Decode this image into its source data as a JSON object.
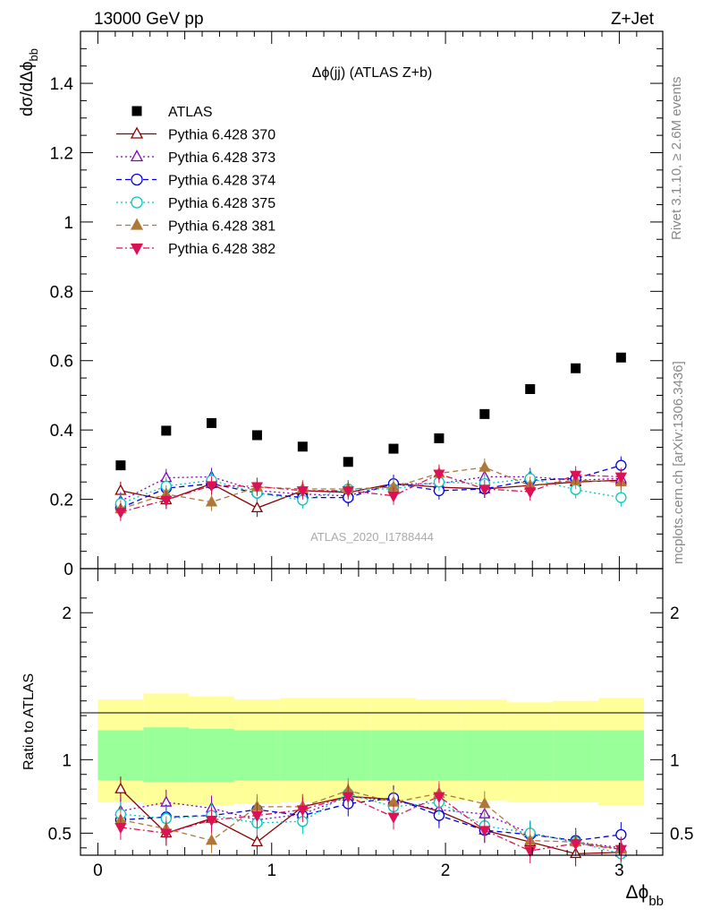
{
  "header": {
    "energy_label": "13000 GeV pp",
    "process_label": "Z+Jet"
  },
  "side_labels": {
    "rivet": "Rivet 3.1.10, ≥ 2.6M events",
    "mcplots": "mcplots.cern.ch [arXiv:1306.3436]"
  },
  "chart_data": [
    {
      "type": "scatter",
      "title": "Δϕ(jj) (ATLAS Z+b)",
      "watermark": "ATLAS_2020_I1788444",
      "ylabel": "dσ/dΔϕbb",
      "xlim": [
        -0.1,
        3.25
      ],
      "ylim": [
        0,
        1.55
      ],
      "yticks": [
        0,
        0.2,
        0.4,
        0.6,
        0.8,
        1,
        1.2,
        1.4
      ],
      "ytick_labels": [
        "0",
        "0.2",
        "0.4",
        "0.6",
        "0.8",
        "1",
        "1.2",
        "1.4"
      ],
      "legend_position": "top-left",
      "x": [
        0.131,
        0.393,
        0.654,
        0.916,
        1.178,
        1.44,
        1.701,
        1.963,
        2.225,
        2.487,
        2.749,
        3.01
      ],
      "data": {
        "name": "ATLAS",
        "color": "#000000",
        "values": [
          0.298,
          0.398,
          0.42,
          0.385,
          0.352,
          0.308,
          0.346,
          0.376,
          0.446,
          0.518,
          0.578,
          0.609
        ]
      },
      "series": [
        {
          "name": "Pythia 6.428 370",
          "color": "#8b0000",
          "marker": "triangle-open",
          "dash": "solid",
          "values": [
            0.225,
            0.198,
            0.245,
            0.175,
            0.225,
            0.22,
            0.245,
            0.235,
            0.23,
            0.24,
            0.25,
            0.255
          ]
        },
        {
          "name": "Pythia 6.428 373",
          "color": "#8000c0",
          "marker": "triangle-open",
          "dash": "dotted",
          "values": [
            0.195,
            0.262,
            0.265,
            0.225,
            0.215,
            0.21,
            0.245,
            0.245,
            0.265,
            0.265,
            0.255,
            0.26
          ]
        },
        {
          "name": "Pythia 6.428 374",
          "color": "#0000dd",
          "marker": "circle-open",
          "dash": "dashed",
          "values": [
            0.175,
            0.232,
            0.245,
            0.218,
            0.205,
            0.205,
            0.245,
            0.225,
            0.23,
            0.255,
            0.26,
            0.298
          ]
        },
        {
          "name": "Pythia 6.428 375",
          "color": "#00ccbb",
          "marker": "circle-open",
          "dash": "dotted",
          "values": [
            0.188,
            0.238,
            0.255,
            0.218,
            0.198,
            0.23,
            0.23,
            0.25,
            0.245,
            0.26,
            0.228,
            0.205
          ]
        },
        {
          "name": "Pythia 6.428 381",
          "color": "#b07838",
          "marker": "triangle-filled",
          "dash": "dashed",
          "values": [
            0.172,
            0.215,
            0.192,
            0.235,
            0.23,
            0.23,
            0.235,
            0.275,
            0.292,
            0.24,
            0.255,
            0.25
          ]
        },
        {
          "name": "Pythia 6.428 382",
          "color": "#dd1155",
          "marker": "triangledown-filled",
          "dash": "dashdot",
          "values": [
            0.163,
            0.198,
            0.24,
            0.237,
            0.225,
            0.225,
            0.21,
            0.273,
            0.23,
            0.222,
            0.27,
            0.265
          ]
        }
      ]
    },
    {
      "type": "scatter",
      "ylabel": "Ratio to ATLAS",
      "xlabel": "Δϕbb",
      "xlim": [
        -0.1,
        3.25
      ],
      "ylim": [
        0.35,
        2.3
      ],
      "yticks": [
        0.5,
        1,
        2
      ],
      "ytick_labels": [
        "0.5",
        "1",
        "2"
      ],
      "xticks": [
        0,
        1,
        2,
        3
      ],
      "xtick_labels": [
        "0",
        "1",
        "2",
        "3"
      ],
      "reference_line": 1,
      "bin_edges": [
        0,
        0.262,
        0.524,
        0.785,
        1.047,
        1.309,
        1.571,
        1.833,
        2.094,
        2.356,
        2.618,
        2.88,
        3.142
      ],
      "band_inner": {
        "color": "#99ff99",
        "low": [
          0.86,
          0.85,
          0.85,
          0.86,
          0.86,
          0.86,
          0.86,
          0.86,
          0.86,
          0.86,
          0.86,
          0.86
        ],
        "high": [
          1.2,
          1.22,
          1.21,
          1.2,
          1.2,
          1.2,
          1.2,
          1.2,
          1.2,
          1.2,
          1.2,
          1.2
        ]
      },
      "band_outer": {
        "color": "#ffff99",
        "low": [
          0.71,
          0.69,
          0.69,
          0.7,
          0.71,
          0.72,
          0.72,
          0.72,
          0.72,
          0.71,
          0.71,
          0.69
        ],
        "high": [
          1.41,
          1.45,
          1.43,
          1.41,
          1.42,
          1.42,
          1.42,
          1.41,
          1.41,
          1.39,
          1.4,
          1.42
        ]
      },
      "series": [
        {
          "name": "Pythia 6.428 370",
          "values": [
            0.8,
            0.5,
            0.6,
            0.44,
            0.68,
            0.75,
            0.73,
            0.65,
            0.52,
            0.44,
            0.36,
            0.37
          ]
        },
        {
          "name": "Pythia 6.428 373",
          "values": [
            0.65,
            0.71,
            0.67,
            0.59,
            0.63,
            0.75,
            0.72,
            0.66,
            0.63,
            0.5,
            0.44,
            0.4
          ]
        },
        {
          "name": "Pythia 6.428 374",
          "values": [
            0.59,
            0.61,
            0.62,
            0.66,
            0.62,
            0.7,
            0.74,
            0.62,
            0.52,
            0.49,
            0.45,
            0.49
          ]
        },
        {
          "name": "Pythia 6.428 375",
          "values": [
            0.63,
            0.6,
            0.62,
            0.57,
            0.58,
            0.77,
            0.68,
            0.71,
            0.55,
            0.5,
            0.44,
            0.36
          ]
        },
        {
          "name": "Pythia 6.428 381",
          "values": [
            0.59,
            0.53,
            0.45,
            0.68,
            0.68,
            0.79,
            0.71,
            0.77,
            0.7,
            0.45,
            0.44,
            0.39
          ]
        },
        {
          "name": "Pythia 6.428 382",
          "values": [
            0.54,
            0.5,
            0.59,
            0.62,
            0.66,
            0.75,
            0.61,
            0.75,
            0.52,
            0.38,
            0.43,
            0.39
          ]
        }
      ]
    }
  ]
}
